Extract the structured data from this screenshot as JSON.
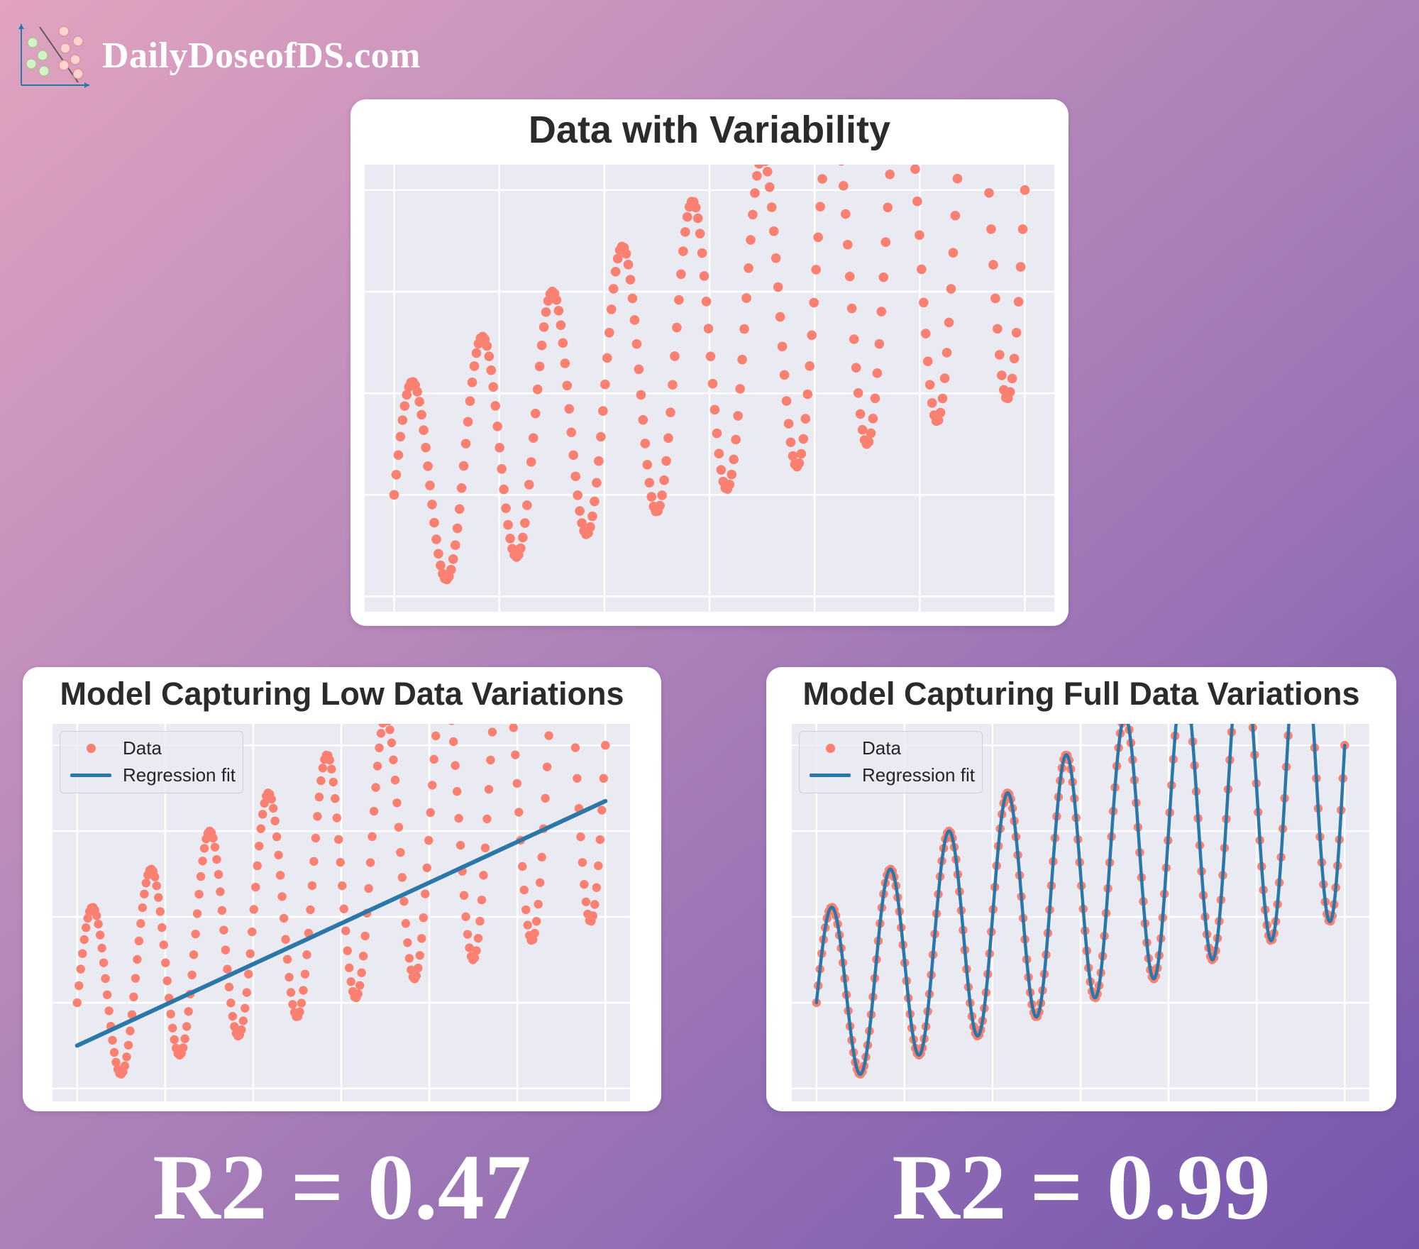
{
  "brand": {
    "text": "DailyDoseofDS.com"
  },
  "colors": {
    "data": "#fa8072",
    "fit": "#2a77a8",
    "plot_bg": "#eaeaf2",
    "grid": "#ffffff"
  },
  "charts": {
    "top": {
      "title": "Data with Variability"
    },
    "left": {
      "title": "Model Capturing Low Data Variations",
      "legend": {
        "data_label": "Data",
        "fit_label": "Regression fit"
      },
      "r2": "R2 = 0.47"
    },
    "right": {
      "title": "Model Capturing Full Data Variations",
      "legend": {
        "data_label": "Data",
        "fit_label": "Regression fit"
      },
      "r2": "R2 = 0.99"
    }
  },
  "chart_data": [
    {
      "type": "scatter",
      "title": "Data with Variability",
      "xlim": [
        -0.14,
        3.14
      ],
      "ylim": [
        -1.15,
        3.25
      ],
      "grid": true,
      "series": [
        {
          "values_fn": "y = x + (1 + x/3) * sin(6*pi*x), x from 0 to 3, 300 samples",
          "x_range": [
            0,
            3
          ],
          "n_points": 300
        }
      ]
    },
    {
      "type": "scatter",
      "title": "Model Capturing Low Data Variations",
      "xlim": [
        -0.14,
        3.14
      ],
      "ylim": [
        -1.15,
        3.25
      ],
      "grid": true,
      "legend": "top-left",
      "series": [
        {
          "name": "Data",
          "values_fn": "y = x + (1 + x/3) * sin(6*pi*x)",
          "x_range": [
            0,
            3
          ],
          "n_points": 300
        },
        {
          "name": "Regression fit",
          "type": "line",
          "x": [
            0,
            3
          ],
          "y": [
            -0.5,
            2.35
          ]
        }
      ],
      "r2": 0.47
    },
    {
      "type": "scatter",
      "title": "Model Capturing Full Data Variations",
      "xlim": [
        -0.14,
        3.14
      ],
      "ylim": [
        -1.15,
        3.25
      ],
      "grid": true,
      "legend": "top-left",
      "series": [
        {
          "name": "Data",
          "values_fn": "y = x + (1 + x/3) * sin(6*pi*x)",
          "x_range": [
            0,
            3
          ],
          "n_points": 300
        },
        {
          "name": "Regression fit",
          "type": "line",
          "values_fn": "y = x + (1 + x/3) * sin(6*pi*x)",
          "x_range": [
            0,
            3
          ]
        }
      ],
      "r2": 0.99
    }
  ]
}
